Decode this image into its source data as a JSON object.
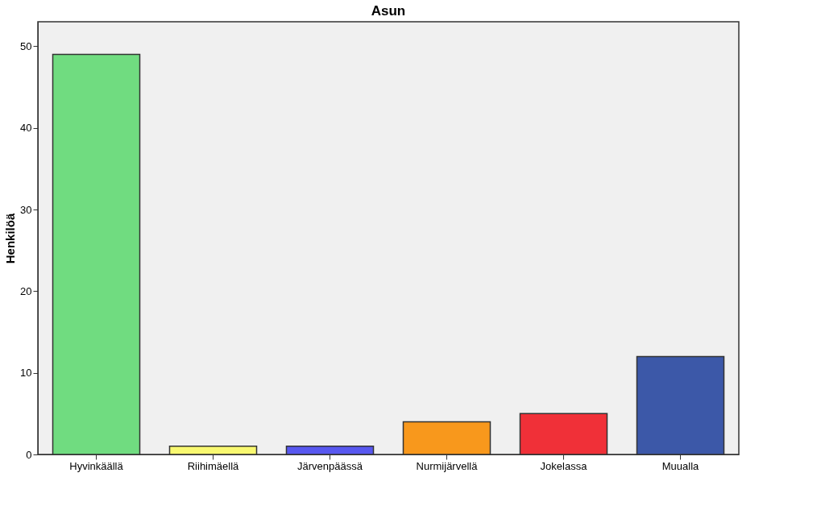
{
  "chart_data": {
    "type": "bar",
    "title": "Asun",
    "ylabel": "Henkilöä",
    "categories": [
      "Hyvinkäällä",
      "Riihimäellä",
      "Järvenpäässä",
      "Nurmijärvellä",
      "Jokelassa",
      "Muualla"
    ],
    "values": [
      49,
      1,
      1,
      4,
      5,
      12
    ],
    "colors": [
      "#70dc80",
      "#f8f870",
      "#5858f0",
      "#f8981c",
      "#f03038",
      "#3c58a8"
    ],
    "ylim": [
      0,
      53
    ],
    "yticks": [
      0,
      10,
      20,
      30,
      40,
      50
    ],
    "grid": false,
    "legend": false
  }
}
